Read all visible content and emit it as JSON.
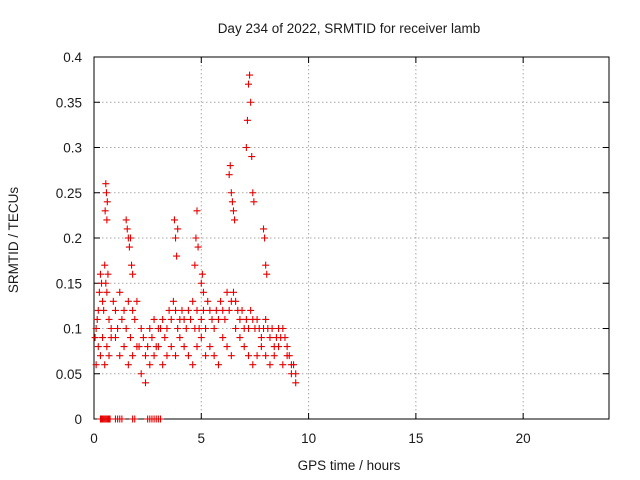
{
  "chart_data": {
    "type": "scatter",
    "title": "Day 234 of 2022, SRMTID for receiver lamb",
    "xlabel": "GPS time / hours",
    "ylabel": "SRMTID / TECUs",
    "xlim": [
      0,
      24
    ],
    "ylim": [
      0,
      0.4
    ],
    "xticks": [
      0,
      5,
      10,
      15,
      20
    ],
    "yticks": [
      0,
      0.05,
      0.1,
      0.15,
      0.2,
      0.25,
      0.3,
      0.35,
      0.4
    ],
    "xtick_labels": [
      "0",
      "5",
      "10",
      "15",
      "20"
    ],
    "ytick_labels": [
      "0",
      "0.05",
      "0.1",
      "0.15",
      "0.2",
      "0.25",
      "0.3",
      "0.35",
      "0.4"
    ],
    "grid": true,
    "marker": "+",
    "marker_color": "#e60000",
    "series": [
      {
        "name": "SRMTID",
        "x": [
          0.05,
          0.1,
          0.15,
          0.2,
          0.25,
          0.3,
          0.35,
          0.4,
          0.45,
          0.5,
          0.55,
          0.6,
          0.65,
          0.7,
          0.8,
          0.9,
          1.0,
          1.1,
          1.2,
          1.3,
          1.4,
          1.5,
          1.6,
          1.7,
          1.8,
          1.9,
          2.0,
          2.1,
          2.2,
          2.3,
          2.4,
          2.5,
          2.6,
          2.7,
          2.8,
          2.9,
          3.0,
          3.1,
          3.2,
          3.3,
          3.4,
          3.5,
          3.6,
          3.7,
          3.8,
          3.9,
          4.0,
          4.1,
          4.2,
          4.3,
          4.4,
          4.5,
          4.6,
          4.7,
          4.8,
          4.9,
          5.0,
          5.1,
          5.2,
          5.3,
          5.4,
          5.5,
          5.6,
          5.7,
          5.8,
          5.9,
          6.0,
          6.1,
          6.2,
          6.3,
          6.4,
          6.5,
          6.6,
          6.7,
          6.8,
          6.9,
          7.0,
          7.1,
          7.2,
          7.3,
          7.4,
          7.5,
          7.6,
          7.7,
          7.8,
          7.9,
          8.0,
          8.1,
          8.2,
          8.3,
          8.4,
          8.5,
          8.6,
          8.7,
          8.8,
          8.9,
          9.0,
          9.1,
          9.2,
          9.3,
          9.4,
          0.1,
          0.2,
          0.3,
          0.4,
          0.5,
          0.6,
          0.7,
          0.8,
          1.0,
          1.2,
          1.4,
          1.6,
          1.8,
          2.0,
          2.2,
          2.4,
          2.6,
          2.8,
          3.0,
          3.2,
          3.4,
          3.6,
          3.8,
          4.0,
          4.2,
          4.4,
          4.6,
          4.8,
          5.0,
          5.2,
          5.4,
          5.6,
          5.8,
          6.0,
          6.2,
          6.4,
          6.6,
          6.8,
          7.0,
          7.2,
          7.4,
          7.6,
          7.8,
          8.0,
          8.2,
          8.4,
          8.6,
          8.8,
          9.0,
          9.2,
          9.4,
          0.52,
          0.55,
          0.58,
          0.6,
          0.62,
          1.5,
          1.55,
          1.6,
          1.65,
          1.7,
          1.75,
          1.8,
          3.75,
          3.8,
          3.85,
          3.9,
          4.7,
          4.75,
          4.8,
          4.85,
          5.0,
          5.05,
          5.1,
          6.3,
          6.35,
          6.4,
          6.45,
          6.5,
          6.55,
          7.1,
          7.15,
          7.2,
          7.25,
          7.3,
          7.35,
          7.4,
          7.45,
          7.9,
          7.95,
          8.0,
          8.05,
          0.3,
          0.35,
          0.4,
          0.45,
          0.5,
          0.55,
          0.6,
          0.65,
          0.7,
          0.75,
          1.0,
          1.1,
          1.2,
          1.3,
          1.8,
          1.9,
          2.5,
          2.6,
          2.7,
          2.8,
          2.9,
          3.0,
          3.1
        ],
        "y": [
          0.09,
          0.1,
          0.11,
          0.12,
          0.14,
          0.16,
          0.15,
          0.13,
          0.12,
          0.17,
          0.15,
          0.14,
          0.16,
          0.11,
          0.09,
          0.13,
          0.12,
          0.1,
          0.14,
          0.11,
          0.12,
          0.1,
          0.13,
          0.09,
          0.12,
          0.11,
          0.13,
          0.08,
          0.1,
          0.09,
          0.07,
          0.08,
          0.1,
          0.09,
          0.11,
          0.08,
          0.1,
          0.1,
          0.11,
          0.09,
          0.1,
          0.12,
          0.11,
          0.13,
          0.12,
          0.1,
          0.11,
          0.12,
          0.11,
          0.1,
          0.12,
          0.11,
          0.13,
          0.1,
          0.12,
          0.1,
          0.11,
          0.12,
          0.1,
          0.13,
          0.12,
          0.11,
          0.1,
          0.12,
          0.11,
          0.13,
          0.12,
          0.11,
          0.14,
          0.12,
          0.13,
          0.14,
          0.13,
          0.12,
          0.11,
          0.12,
          0.1,
          0.11,
          0.1,
          0.12,
          0.11,
          0.1,
          0.11,
          0.1,
          0.09,
          0.1,
          0.11,
          0.1,
          0.09,
          0.1,
          0.08,
          0.09,
          0.1,
          0.09,
          0.1,
          0.09,
          0.08,
          0.07,
          0.06,
          0.06,
          0.05,
          0.06,
          0.08,
          0.07,
          0.09,
          0.06,
          0.08,
          0.07,
          0.1,
          0.09,
          0.07,
          0.08,
          0.06,
          0.07,
          0.08,
          0.05,
          0.04,
          0.06,
          0.07,
          0.08,
          0.06,
          0.07,
          0.08,
          0.07,
          0.09,
          0.08,
          0.07,
          0.06,
          0.08,
          0.09,
          0.07,
          0.08,
          0.07,
          0.06,
          0.09,
          0.08,
          0.07,
          0.1,
          0.09,
          0.08,
          0.07,
          0.06,
          0.07,
          0.08,
          0.07,
          0.06,
          0.07,
          0.08,
          0.06,
          0.07,
          0.05,
          0.04,
          0.23,
          0.26,
          0.25,
          0.22,
          0.24,
          0.22,
          0.21,
          0.2,
          0.19,
          0.2,
          0.17,
          0.16,
          0.22,
          0.2,
          0.18,
          0.21,
          0.17,
          0.2,
          0.23,
          0.19,
          0.15,
          0.16,
          0.14,
          0.27,
          0.28,
          0.25,
          0.24,
          0.23,
          0.22,
          0.3,
          0.33,
          0.37,
          0.38,
          0.35,
          0.29,
          0.25,
          0.24,
          0.21,
          0.2,
          0.17,
          0.16,
          0,
          0,
          0,
          0,
          0,
          0,
          0,
          0,
          0,
          0,
          0,
          0,
          0,
          0,
          0,
          0,
          0,
          0,
          0,
          0,
          0,
          0,
          0
        ]
      }
    ]
  }
}
